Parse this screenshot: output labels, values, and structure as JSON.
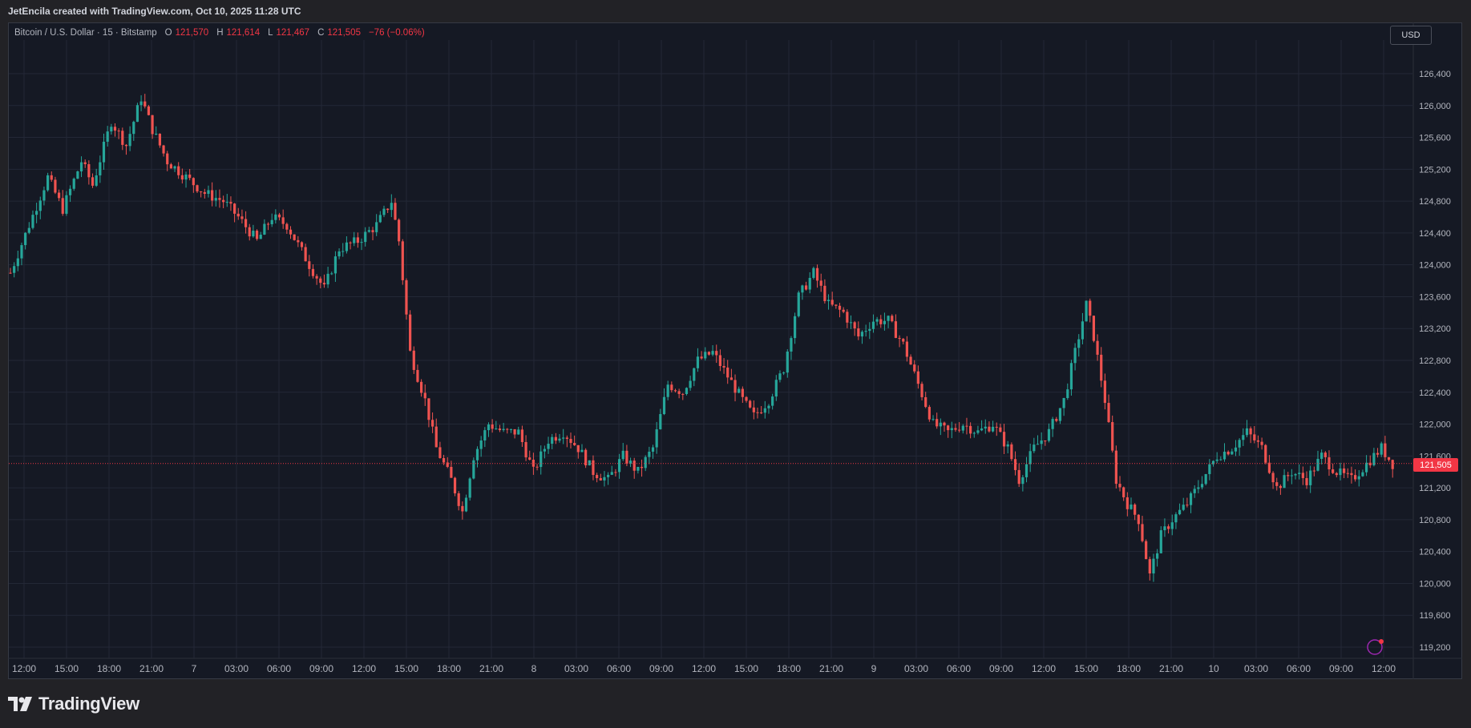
{
  "header": {
    "attribution": "JetEncila created with TradingView.com, Oct 10, 2025 11:28 UTC"
  },
  "legend": {
    "symbol": "Bitcoin / U.S. Dollar · 15 · Bitstamp",
    "o_label": "O",
    "o_value": "121,570",
    "h_label": "H",
    "h_value": "121,614",
    "l_label": "L",
    "l_value": "121,467",
    "c_label": "C",
    "c_value": "121,505",
    "change": "−76 (−0.06%)"
  },
  "currency_button": "USD",
  "last_price_label": "121,505",
  "footer": {
    "brand": "TradingView"
  },
  "colors": {
    "up": "#26a69a",
    "down": "#ef5350",
    "background": "#151924",
    "grid": "#232836"
  },
  "chart_data": {
    "type": "candlestick",
    "interval": "15",
    "symbol": "Bitcoin / U.S. Dollar",
    "exchange": "Bitstamp",
    "y_ticks": [
      119200,
      119600,
      120000,
      120400,
      120800,
      121200,
      121600,
      122000,
      122400,
      122800,
      123200,
      123600,
      124000,
      124400,
      124800,
      125200,
      125600,
      126000,
      126400
    ],
    "y_tick_labels": [
      "119,200",
      "119,600",
      "120,000",
      "120,400",
      "120,800",
      "121,200",
      "121,600",
      "122,000",
      "122,400",
      "122,800",
      "123,200",
      "123,600",
      "124,000",
      "124,400",
      "124,800",
      "125,200",
      "125,600",
      "126,000",
      "126,400"
    ],
    "x_tick_labels": [
      "12:00",
      "15:00",
      "18:00",
      "21:00",
      "7",
      "03:00",
      "06:00",
      "09:00",
      "12:00",
      "15:00",
      "18:00",
      "21:00",
      "8",
      "03:00",
      "06:00",
      "09:00",
      "12:00",
      "15:00",
      "18:00",
      "21:00",
      "9",
      "03:00",
      "06:00",
      "09:00",
      "12:00",
      "15:00",
      "18:00",
      "21:00",
      "10",
      "03:00",
      "06:00",
      "09:00",
      "12:00"
    ],
    "ylim": [
      119100,
      126900
    ],
    "last_price": 121505,
    "price_path": [
      [
        0,
        123900
      ],
      [
        5,
        124500
      ],
      [
        10,
        125100
      ],
      [
        14,
        124700
      ],
      [
        19,
        125300
      ],
      [
        22,
        125000
      ],
      [
        27,
        125800
      ],
      [
        31,
        125500
      ],
      [
        35,
        126100
      ],
      [
        38,
        125700
      ],
      [
        42,
        125300
      ],
      [
        47,
        125100
      ],
      [
        52,
        124900
      ],
      [
        57,
        124800
      ],
      [
        61,
        124600
      ],
      [
        66,
        124300
      ],
      [
        70,
        124600
      ],
      [
        74,
        124500
      ],
      [
        80,
        124000
      ],
      [
        84,
        123700
      ],
      [
        88,
        124200
      ],
      [
        93,
        124300
      ],
      [
        98,
        124500
      ],
      [
        102,
        124800
      ],
      [
        104,
        124300
      ],
      [
        107,
        122900
      ],
      [
        111,
        122300
      ],
      [
        114,
        121700
      ],
      [
        118,
        121300
      ],
      [
        121,
        120900
      ],
      [
        124,
        121600
      ],
      [
        128,
        122000
      ],
      [
        132,
        121900
      ],
      [
        136,
        121900
      ],
      [
        140,
        121400
      ],
      [
        144,
        121800
      ],
      [
        148,
        121900
      ],
      [
        152,
        121700
      ],
      [
        156,
        121400
      ],
      [
        160,
        121300
      ],
      [
        164,
        121600
      ],
      [
        168,
        121400
      ],
      [
        172,
        121700
      ],
      [
        176,
        122500
      ],
      [
        180,
        122400
      ],
      [
        184,
        122800
      ],
      [
        188,
        122900
      ],
      [
        192,
        122600
      ],
      [
        196,
        122300
      ],
      [
        199,
        122100
      ],
      [
        203,
        122300
      ],
      [
        207,
        122700
      ],
      [
        211,
        123600
      ],
      [
        215,
        123900
      ],
      [
        219,
        123500
      ],
      [
        223,
        123400
      ],
      [
        227,
        123100
      ],
      [
        231,
        123300
      ],
      [
        235,
        123300
      ],
      [
        239,
        123000
      ],
      [
        243,
        122500
      ],
      [
        247,
        122000
      ],
      [
        251,
        121900
      ],
      [
        255,
        122000
      ],
      [
        259,
        121900
      ],
      [
        263,
        122000
      ],
      [
        267,
        121700
      ],
      [
        270,
        121300
      ],
      [
        274,
        121700
      ],
      [
        278,
        121900
      ],
      [
        282,
        122300
      ],
      [
        285,
        122900
      ],
      [
        288,
        123500
      ],
      [
        290,
        123100
      ],
      [
        293,
        122300
      ],
      [
        296,
        121300
      ],
      [
        299,
        121000
      ],
      [
        302,
        120800
      ],
      [
        305,
        120100
      ],
      [
        308,
        120600
      ],
      [
        311,
        120800
      ],
      [
        315,
        121000
      ],
      [
        319,
        121300
      ],
      [
        323,
        121600
      ],
      [
        327,
        121700
      ],
      [
        331,
        121900
      ],
      [
        335,
        121700
      ],
      [
        339,
        121200
      ],
      [
        343,
        121400
      ],
      [
        347,
        121300
      ],
      [
        351,
        121600
      ],
      [
        355,
        121400
      ],
      [
        359,
        121300
      ],
      [
        363,
        121500
      ],
      [
        367,
        121700
      ],
      [
        370,
        121500
      ]
    ]
  }
}
